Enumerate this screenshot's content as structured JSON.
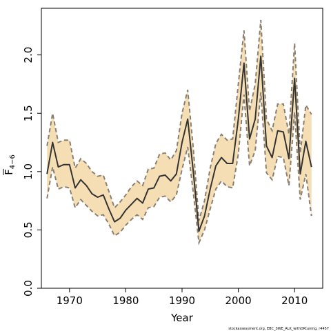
{
  "chart_data": {
    "type": "line",
    "title": "",
    "xlabel": "Year",
    "ylabel_main": "F",
    "ylabel_sub": "4−6",
    "xlim": [
      1965,
      2015
    ],
    "ylim": [
      0,
      2.4
    ],
    "x_ticks": [
      1970,
      1980,
      1990,
      2000,
      2010
    ],
    "y_ticks": [
      0.0,
      0.5,
      1.0,
      1.5,
      2.0
    ],
    "x_tick_labels": [
      "1970",
      "1980",
      "1990",
      "2000",
      "2010"
    ],
    "y_tick_labels": [
      "0.0",
      "0.5",
      "1.0",
      "1.5",
      "2.0"
    ],
    "grid": false,
    "colors": {
      "band": "#f5deb3",
      "estimate": "#333333",
      "bounds": "#8a7f73"
    },
    "x": [
      1966,
      1967,
      1968,
      1969,
      1970,
      1971,
      1972,
      1973,
      1974,
      1975,
      1976,
      1977,
      1978,
      1979,
      1980,
      1981,
      1982,
      1983,
      1984,
      1985,
      1986,
      1987,
      1988,
      1989,
      1990,
      1991,
      1992,
      1993,
      1994,
      1995,
      1996,
      1997,
      1998,
      1999,
      2000,
      2001,
      2002,
      2003,
      2004,
      2005,
      2006,
      2007,
      2008,
      2009,
      2010,
      2011,
      2012,
      2013
    ],
    "series": [
      {
        "role": "estimate",
        "values": [
          0.98,
          1.25,
          1.04,
          1.06,
          1.06,
          0.86,
          0.93,
          0.88,
          0.81,
          0.78,
          0.8,
          0.68,
          0.57,
          0.6,
          0.67,
          0.72,
          0.77,
          0.73,
          0.85,
          0.86,
          0.96,
          0.97,
          0.92,
          0.98,
          1.25,
          1.45,
          1.0,
          0.49,
          0.62,
          0.85,
          1.05,
          1.12,
          1.07,
          1.07,
          1.45,
          1.93,
          1.28,
          1.45,
          1.99,
          1.22,
          1.12,
          1.35,
          1.34,
          1.11,
          1.8,
          0.98,
          1.26,
          1.04
        ]
      },
      {
        "role": "upper",
        "values": [
          1.22,
          1.5,
          1.25,
          1.27,
          1.27,
          1.03,
          1.11,
          1.07,
          1.0,
          0.96,
          0.97,
          0.83,
          0.69,
          0.74,
          0.8,
          0.87,
          0.92,
          0.88,
          1.02,
          1.03,
          1.15,
          1.16,
          1.1,
          1.18,
          1.5,
          1.7,
          1.2,
          0.58,
          0.75,
          1.03,
          1.24,
          1.32,
          1.27,
          1.28,
          1.75,
          2.21,
          1.52,
          1.75,
          2.3,
          1.45,
          1.35,
          1.58,
          1.58,
          1.32,
          2.1,
          1.16,
          1.57,
          1.49
        ]
      },
      {
        "role": "lower",
        "values": [
          0.77,
          1.04,
          0.85,
          0.87,
          0.86,
          0.69,
          0.76,
          0.71,
          0.66,
          0.62,
          0.63,
          0.55,
          0.45,
          0.48,
          0.54,
          0.59,
          0.63,
          0.59,
          0.69,
          0.7,
          0.78,
          0.79,
          0.74,
          0.8,
          1.02,
          1.21,
          0.82,
          0.39,
          0.5,
          0.68,
          0.85,
          0.92,
          0.87,
          0.86,
          1.15,
          1.66,
          1.05,
          1.18,
          1.68,
          0.99,
          0.93,
          1.13,
          1.12,
          0.88,
          1.51,
          0.76,
          0.98,
          0.62
        ]
      }
    ]
  },
  "footer": {
    "credit": "stockassessment.org, EBC_SWE_ALK_withDKtuning, r4457"
  }
}
